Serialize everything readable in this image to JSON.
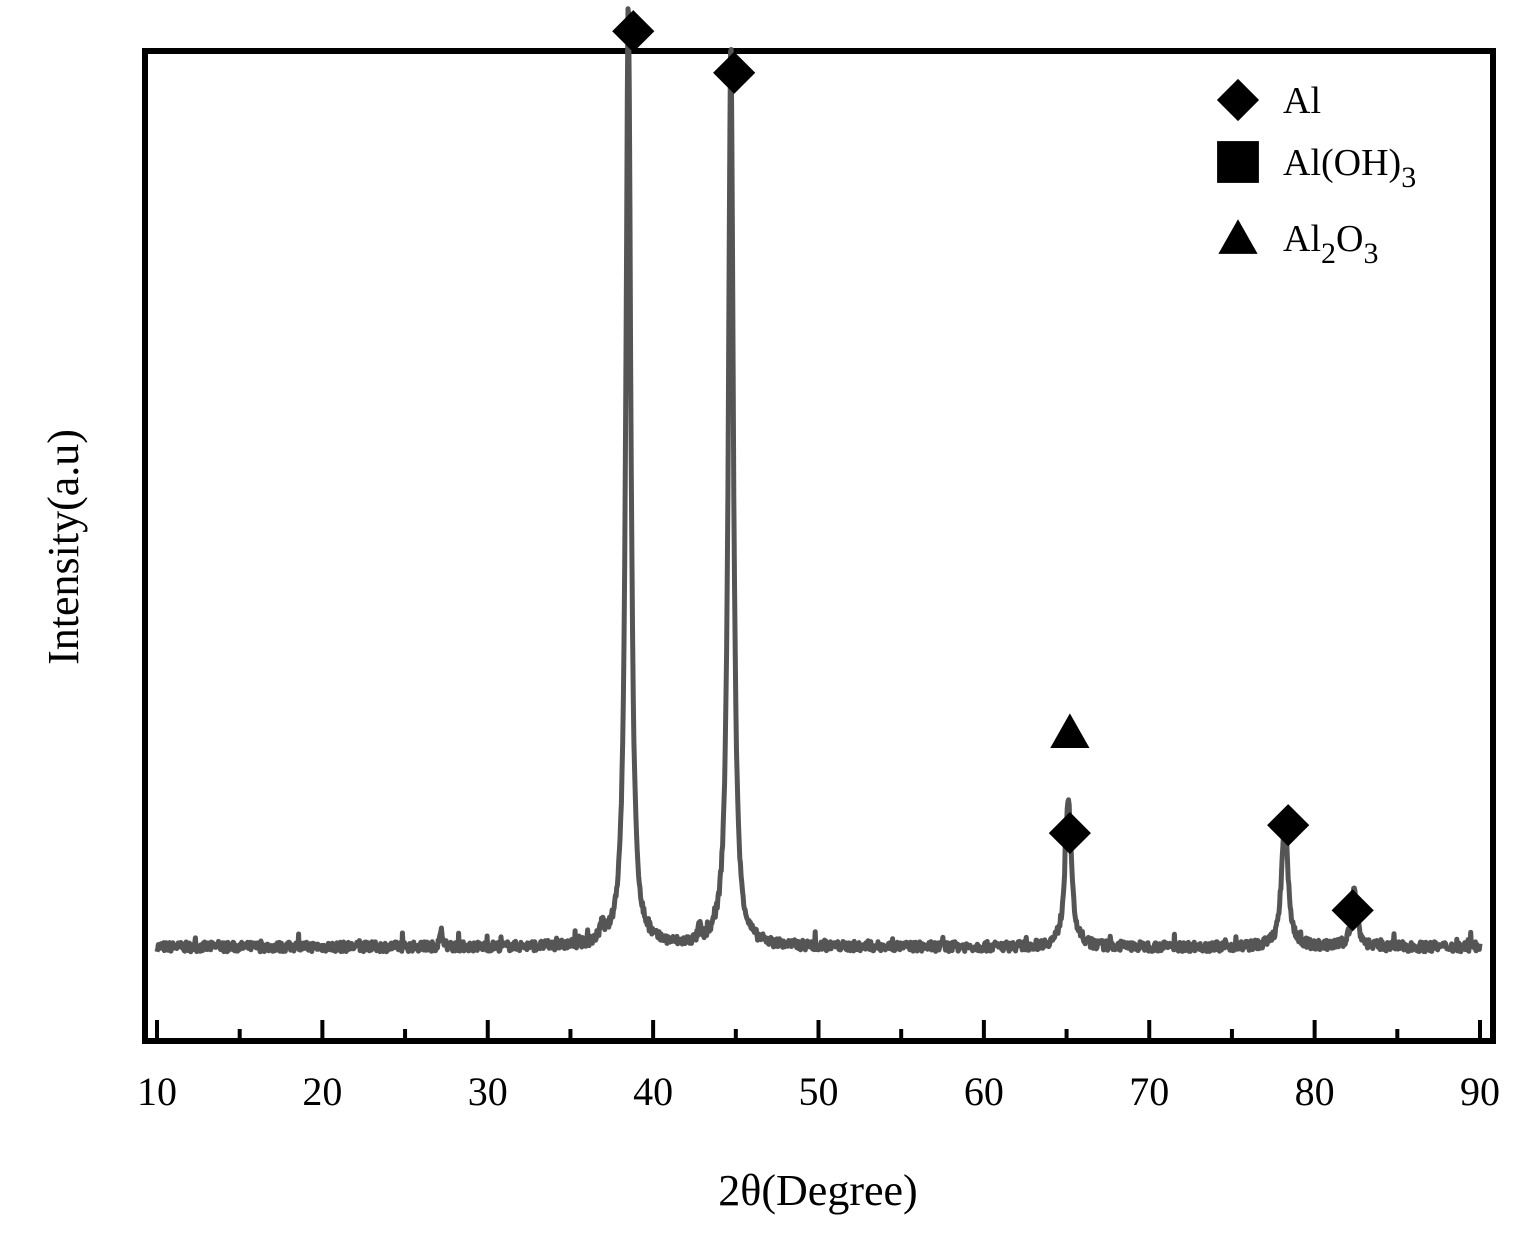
{
  "chart_data": {
    "type": "line",
    "xlabel": "2θ(Degree)",
    "ylabel": "Intensity(a.u)",
    "xlim": [
      10,
      90
    ],
    "ylim": [
      0,
      1000
    ],
    "xticks": [
      10,
      20,
      30,
      40,
      50,
      60,
      70,
      80,
      90
    ],
    "yticks_shown": false,
    "grid": false,
    "legend_position": "top-right",
    "line_color": "#555555",
    "baseline": 95,
    "peaks": [
      {
        "x": 38.5,
        "height": 955,
        "width": 0.18
      },
      {
        "x": 44.7,
        "height": 915,
        "width": 0.18
      },
      {
        "x": 65.1,
        "height": 152,
        "width": 0.22
      },
      {
        "x": 78.2,
        "height": 132,
        "width": 0.22
      },
      {
        "x": 82.4,
        "height": 58,
        "width": 0.2
      },
      {
        "x": 27.2,
        "height": 20,
        "width": 0.08
      },
      {
        "x": 36.9,
        "height": 14,
        "width": 0.15
      },
      {
        "x": 42.8,
        "height": 15,
        "width": 0.08
      }
    ],
    "noise_amplitude": 10,
    "legend": [
      {
        "marker": "diamond",
        "text": "Al",
        "sub": ""
      },
      {
        "marker": "square",
        "text": "Al(OH)",
        "sub": "3"
      },
      {
        "marker": "triangle",
        "text": "Al",
        "sub": "2",
        "text2": "O",
        "sub2": "3"
      }
    ],
    "annotations": [
      {
        "x": 38.8,
        "y": 1020,
        "marker": "diamond"
      },
      {
        "x": 38.8,
        "y": 1115,
        "marker": "square"
      },
      {
        "x": 44.9,
        "y": 978,
        "marker": "diamond"
      },
      {
        "x": 65.2,
        "y": 210,
        "marker": "diamond"
      },
      {
        "x": 65.2,
        "y": 312,
        "marker": "triangle"
      },
      {
        "x": 78.4,
        "y": 218,
        "marker": "diamond"
      },
      {
        "x": 82.3,
        "y": 132,
        "marker": "diamond"
      }
    ]
  }
}
